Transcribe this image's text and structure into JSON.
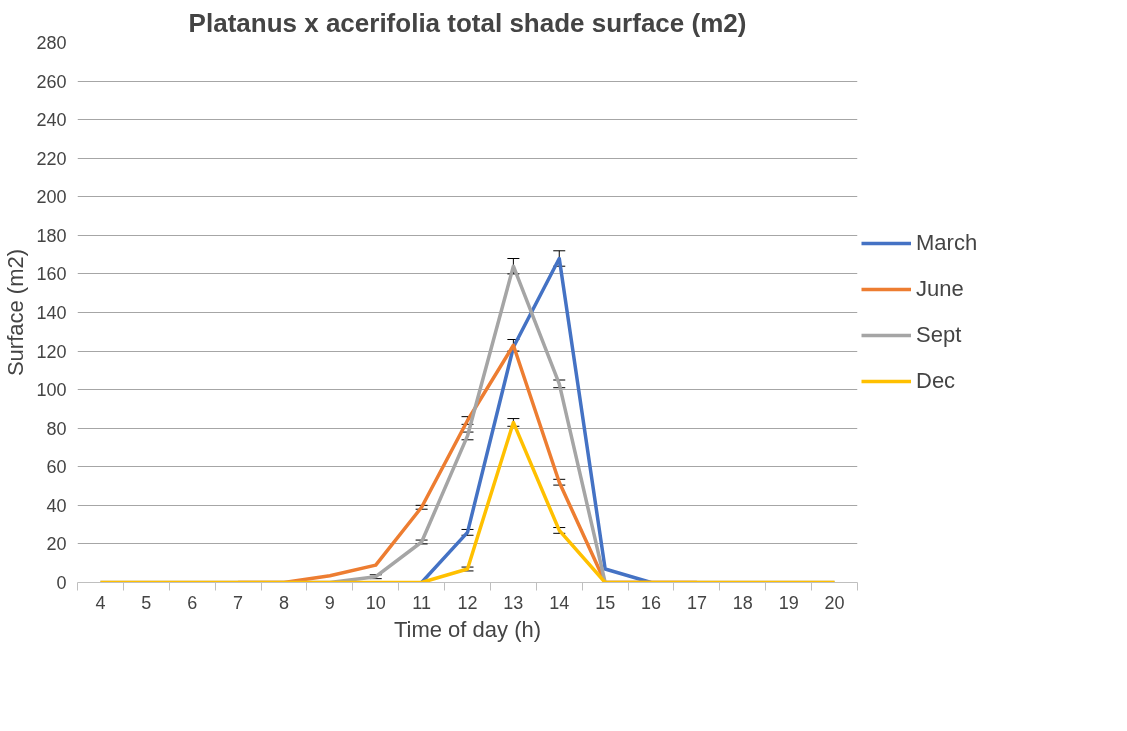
{
  "chart_data": {
    "type": "line",
    "title": "Platanus x acerifolia total shade surface (m2)",
    "xlabel": "Time of day (h)",
    "ylabel": "Surface (m2)",
    "categories": [
      "4",
      "5",
      "6",
      "7",
      "8",
      "9",
      "10",
      "11",
      "12",
      "13",
      "14",
      "15",
      "16",
      "17",
      "18",
      "19",
      "20"
    ],
    "ylim": [
      0,
      280
    ],
    "yticks": [
      0,
      20,
      40,
      60,
      80,
      100,
      120,
      140,
      160,
      180,
      200,
      220,
      240,
      260,
      280
    ],
    "grid": "y",
    "legend": "right",
    "marker": "none",
    "line_style": "solid",
    "series": [
      {
        "name": "March",
        "color": "#4472c4",
        "values": [
          null,
          null,
          null,
          null,
          null,
          null,
          null,
          0,
          26,
          122,
          168,
          7,
          0,
          null,
          null,
          null,
          null
        ],
        "errors": [
          null,
          null,
          null,
          null,
          null,
          null,
          null,
          null,
          1.5,
          null,
          4,
          null,
          null,
          null,
          null,
          null,
          null
        ]
      },
      {
        "name": "June",
        "color": "#ed7d31",
        "values": [
          null,
          null,
          null,
          0,
          0,
          3.5,
          9,
          39,
          84,
          123,
          52,
          0,
          0,
          0,
          null,
          null,
          null
        ],
        "errors": [
          null,
          null,
          null,
          null,
          null,
          null,
          null,
          1,
          2,
          3,
          1.5,
          null,
          null,
          null,
          null,
          null,
          null
        ]
      },
      {
        "name": "Sept",
        "color": "#a5a5a5",
        "values": [
          0,
          0,
          0,
          0,
          0,
          0,
          3,
          21,
          76,
          164,
          103,
          0,
          0,
          0,
          0,
          0,
          0
        ],
        "errors": [
          null,
          null,
          null,
          null,
          null,
          null,
          1,
          1,
          2,
          4,
          2,
          null,
          null,
          null,
          null,
          null,
          null
        ]
      },
      {
        "name": "Dec",
        "color": "#ffc000",
        "values": [
          0,
          0,
          0,
          0,
          0,
          0,
          0,
          0,
          7,
          83,
          27,
          0,
          0,
          0,
          0,
          0,
          0
        ],
        "errors": [
          null,
          null,
          null,
          null,
          null,
          null,
          null,
          null,
          1,
          2,
          1.5,
          null,
          null,
          null,
          null,
          null,
          null
        ]
      }
    ]
  }
}
